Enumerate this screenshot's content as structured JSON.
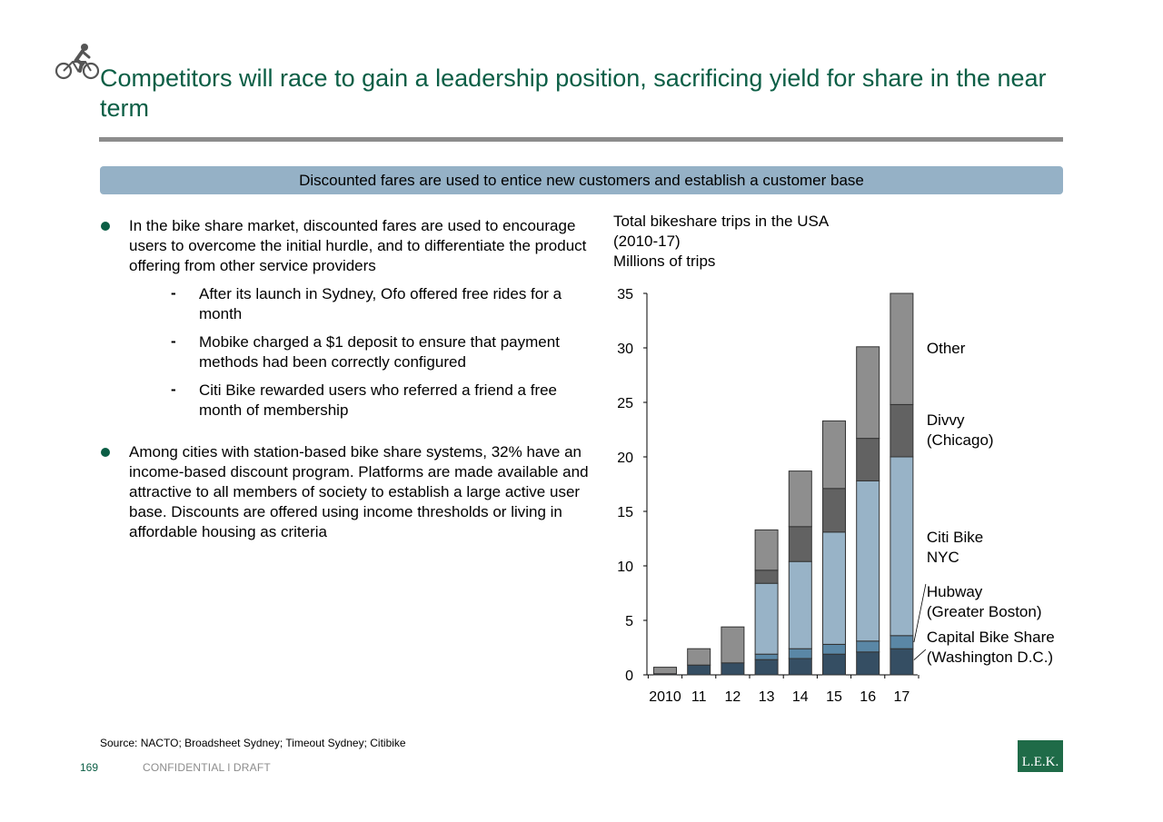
{
  "header": {
    "title": "Competitors will race to gain a leadership position, sacrificing yield for share in the near term"
  },
  "banner": {
    "text": "Discounted fares are used to entice new customers and establish a customer base"
  },
  "bullets": [
    {
      "text": "In the bike share market, discounted fares are used to encourage users to overcome the initial hurdle, and to differentiate the product offering from other service providers",
      "subs": [
        "After its launch in Sydney, Ofo offered free rides for a month",
        "Mobike charged a $1 deposit to ensure that payment methods had been correctly configured",
        "Citi Bike rewarded users who referred a friend a free month of membership"
      ]
    },
    {
      "text": "Among cities with station-based bike share systems, 32% have an income-based discount program. Platforms are made available and attractive to all members of society to establish a large active user base. Discounts are offered using income thresholds or living in affordable housing as criteria"
    }
  ],
  "chart_data": {
    "type": "bar",
    "stacked": true,
    "title": "Total bikeshare trips in the USA",
    "subtitle": "(2010-17)",
    "ylabel": "Millions of trips",
    "categories": [
      "2010",
      "11",
      "12",
      "13",
      "14",
      "15",
      "16",
      "17"
    ],
    "ylim": [
      0,
      35
    ],
    "yticks": [
      0,
      5,
      10,
      15,
      20,
      25,
      30,
      35
    ],
    "series": [
      {
        "name": "Capital Bike Share (Washington D.C.)",
        "color": "#354e63",
        "values": [
          0.1,
          0.9,
          1.1,
          1.4,
          1.5,
          1.9,
          2.1,
          2.4
        ]
      },
      {
        "name": "Hubway (Greater Boston)",
        "color": "#5a87a6",
        "values": [
          0,
          0,
          0,
          0.5,
          0.9,
          0.9,
          1.0,
          1.2
        ]
      },
      {
        "name": "Citi Bike NYC",
        "color": "#98b3c7",
        "values": [
          0,
          0,
          0,
          6.5,
          8.0,
          10.3,
          14.7,
          16.4
        ]
      },
      {
        "name": "Divvy (Chicago)",
        "color": "#626262",
        "values": [
          0,
          0,
          0,
          1.2,
          3.2,
          4.0,
          3.9,
          4.8
        ]
      },
      {
        "name": "Other",
        "color": "#8e8e8e",
        "values": [
          0.6,
          1.5,
          3.3,
          3.7,
          5.1,
          6.2,
          8.4,
          10.2
        ]
      }
    ],
    "legend_labels": [
      {
        "lines": [
          "Other"
        ]
      },
      {
        "lines": [
          "Divvy",
          "(Chicago)"
        ]
      },
      {
        "lines": [
          "Citi Bike",
          "NYC"
        ]
      },
      {
        "lines": [
          "Hubway",
          "(Greater Boston)"
        ]
      },
      {
        "lines": [
          "Capital Bike Share",
          "(Washington D.C.)"
        ]
      }
    ],
    "legend_position": "right",
    "grid": false
  },
  "footer": {
    "source": "Source: NACTO; Broadsheet Sydney; Timeout Sydney; Citibike",
    "page_number": "169",
    "confidentiality": "CONFIDENTIAL l DRAFT",
    "logo_text": "L.E.K."
  },
  "colors": {
    "brand_green": "#0b5e45",
    "banner_blue": "#95b1c6",
    "rule_gray": "#8c8c8c"
  },
  "icons": {
    "header": "cyclist-icon"
  }
}
